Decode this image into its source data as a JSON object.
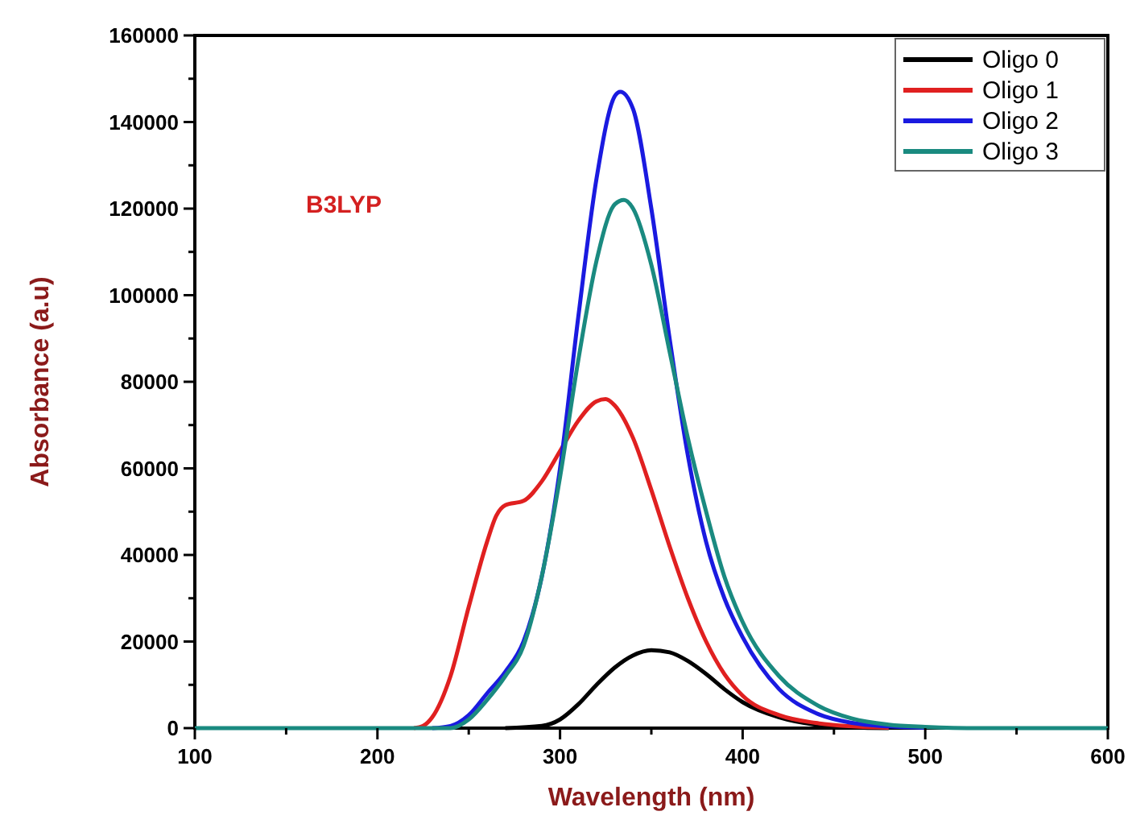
{
  "chart_data": {
    "type": "line",
    "xlabel": "Wavelength (nm)",
    "ylabel": "Absorbance (a.u)",
    "annotations": [
      "B3LYP"
    ],
    "xlim": [
      100,
      600
    ],
    "xticks": [
      100,
      {
        "value": 150,
        "label": null
      },
      200,
      {
        "value": 250,
        "label": null
      },
      300,
      {
        "value": 350,
        "label": null
      },
      400,
      {
        "value": 450,
        "label": null
      },
      500,
      {
        "value": 550,
        "label": null
      },
      600
    ],
    "ylim": [
      0,
      160000
    ],
    "yticks": [
      0,
      {
        "value": 10000,
        "label": null
      },
      20000,
      {
        "value": 30000,
        "label": null
      },
      40000,
      {
        "value": 50000,
        "label": null
      },
      60000,
      {
        "value": 70000,
        "label": null
      },
      80000,
      {
        "value": 90000,
        "label": null
      },
      100000,
      {
        "value": 110000,
        "label": null
      },
      120000,
      {
        "value": 130000,
        "label": null
      },
      140000,
      {
        "value": 150000,
        "label": null
      },
      160000
    ],
    "grid": false,
    "legend": "top right",
    "marker": "none",
    "line_style": "solid",
    "series": [
      {
        "name": "Oligo 0",
        "color": "#000000",
        "x": [
          270,
          290,
          300,
          310,
          320,
          330,
          340,
          350,
          360,
          370,
          380,
          390,
          400,
          420,
          440,
          460,
          480
        ],
        "values": [
          0,
          500,
          2000,
          5500,
          10000,
          14000,
          16800,
          18000,
          17500,
          15500,
          12500,
          9000,
          6000,
          2500,
          800,
          200,
          0
        ]
      },
      {
        "name": "Oligo 1",
        "color": "#e02020",
        "x": [
          220,
          225,
          230,
          240,
          250,
          260,
          265,
          270,
          280,
          290,
          300,
          310,
          320,
          325,
          330,
          340,
          350,
          360,
          370,
          380,
          390,
          400,
          420,
          440,
          460,
          480
        ],
        "values": [
          0,
          500,
          2500,
          12000,
          28000,
          43000,
          49000,
          51500,
          52500,
          57000,
          64000,
          71000,
          75500,
          76000,
          74500,
          67000,
          55000,
          42000,
          30000,
          20000,
          12500,
          7500,
          3000,
          1200,
          400,
          100
        ]
      },
      {
        "name": "Oligo 2",
        "color": "#1a1ae0",
        "x": [
          230,
          240,
          250,
          260,
          270,
          280,
          290,
          300,
          310,
          320,
          330,
          333,
          340,
          350,
          360,
          370,
          380,
          390,
          400,
          420,
          440,
          460,
          480,
          500
        ],
        "values": [
          0,
          500,
          3000,
          8000,
          13000,
          20000,
          35000,
          60000,
          95000,
          127000,
          146000,
          147000,
          143000,
          120000,
          90000,
          63000,
          43000,
          30000,
          21000,
          9000,
          3500,
          1200,
          400,
          100
        ]
      },
      {
        "name": "Oligo 3",
        "color": "#1a8a80",
        "x": [
          100,
          240,
          250,
          260,
          270,
          280,
          290,
          300,
          310,
          320,
          330,
          335,
          340,
          350,
          360,
          370,
          380,
          390,
          400,
          420,
          440,
          460,
          480,
          500,
          530,
          600
        ],
        "values": [
          0,
          0,
          2000,
          6500,
          12000,
          19000,
          35000,
          58000,
          85000,
          108000,
          121000,
          122000,
          120000,
          107000,
          87000,
          67000,
          50000,
          35000,
          24500,
          12000,
          5500,
          2200,
          800,
          300,
          0,
          0
        ]
      }
    ]
  }
}
